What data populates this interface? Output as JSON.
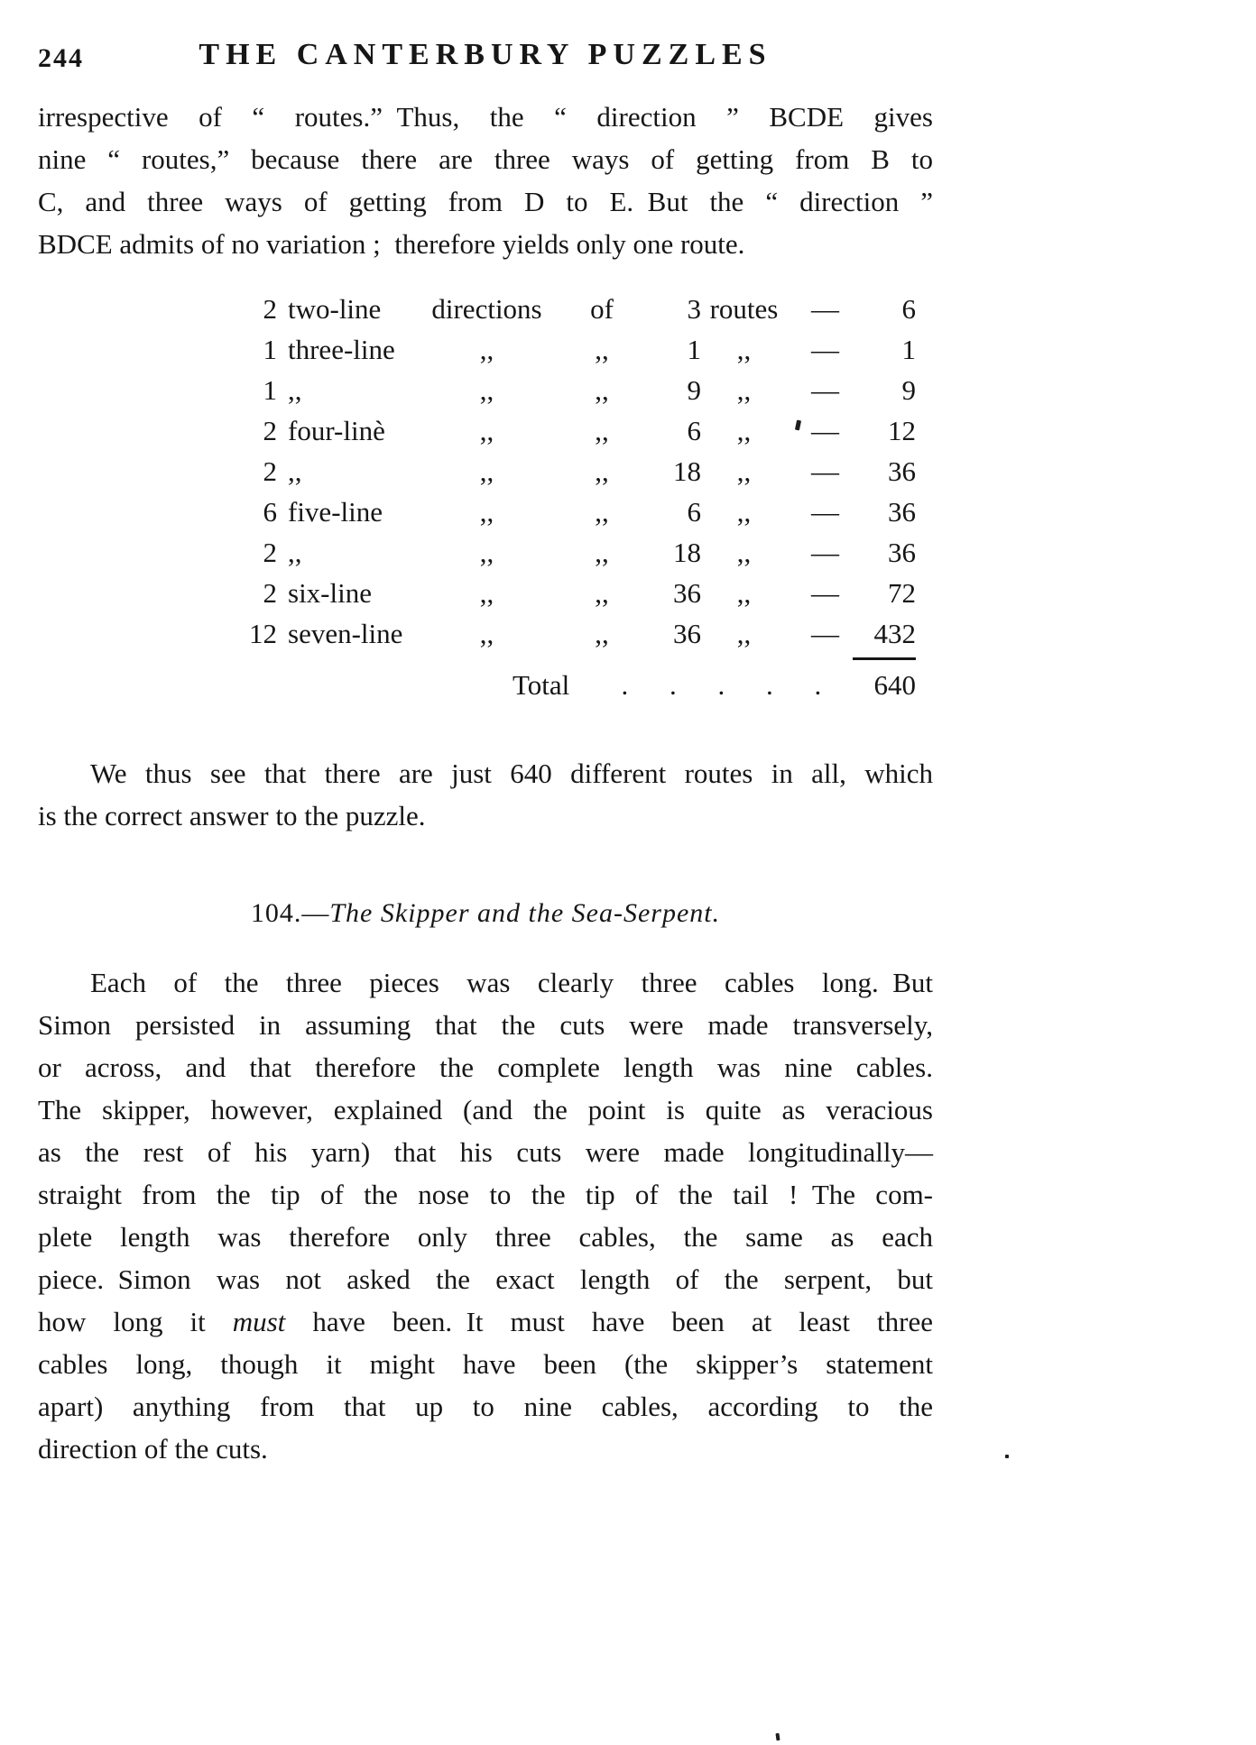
{
  "page": {
    "number": "244",
    "title": "THE CANTERBURY PUZZLES"
  },
  "solution_103": {
    "para1_lines": [
      "irrespective of “ routes.” Thus, the “ direction ” BCDE gives",
      "nine “ routes,” because there are three ways of getting from B to",
      "C, and three ways of getting from D to E. But the “ direction ”",
      "BDCE admits of no variation ; therefore yields only one route."
    ],
    "table": {
      "rows": [
        [
          "2",
          "two-line",
          "directions",
          "of",
          "3",
          "routes",
          "—",
          "6"
        ],
        [
          "1",
          "three-line",
          ",,",
          ",,",
          "1",
          ",,",
          "—",
          "1"
        ],
        [
          "1",
          ",,",
          ",,",
          ",,",
          "9",
          ",,",
          "—",
          "9"
        ],
        [
          "2",
          "four-linè",
          ",,",
          ",,",
          "6",
          ",,",
          "—",
          "12"
        ],
        [
          "2",
          ",,",
          ",,",
          ",,",
          "18",
          ",,",
          "—",
          "36"
        ],
        [
          "6",
          "five-line",
          ",,",
          ",,",
          "6",
          ",,",
          "—",
          "36"
        ],
        [
          "2",
          ",,",
          ",,",
          ",,",
          "18",
          ",,",
          "—",
          "36"
        ],
        [
          "2",
          "six-line",
          ",,",
          ",,",
          "36",
          ",,",
          "—",
          "72"
        ],
        [
          "12",
          "seven-line",
          ",,",
          ",,",
          "36",
          ",,",
          "—",
          "432"
        ]
      ],
      "total_label": "Total",
      "total_dots": ". . . . .",
      "total_value": "640"
    },
    "para2_lines": [
      "We thus see that there are just 640 different routes in all, which",
      "is the correct answer to the puzzle."
    ]
  },
  "solution_104": {
    "heading_number": "104.—",
    "heading_title": "The Skipper and the Sea-Serpent.",
    "para_lines": [
      "Each of the three pieces was clearly three cables long. But",
      "Simon persisted in assuming that the cuts were made transversely,",
      "or across, and that therefore the complete length was nine cables.",
      "The skipper, however, explained (and the point is quite as veracious",
      "as the rest of his yarn) that his cuts were made longitudinally—",
      "straight from the tip of the nose to the tip of the tail ! The com-",
      "plete length was therefore only three cables, the same as each",
      "piece. Simon was not asked the exact length of the serpent, but",
      "how long it *must* have been. It must have been at least three",
      "cables long, though it might have been (the skipper’s statement",
      "apart) anything from that up to nine cables, according to the",
      "direction of the cuts."
    ]
  }
}
